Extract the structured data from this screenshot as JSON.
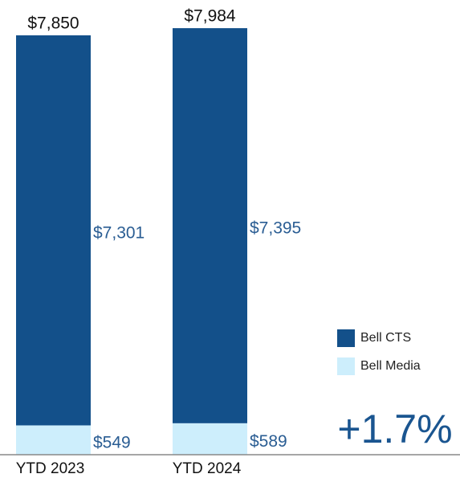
{
  "chart_data": {
    "type": "stacked_bar",
    "categories": [
      "YTD 2023",
      "YTD 2024"
    ],
    "series": [
      {
        "name": "Bell Media",
        "color": "#cdeefc",
        "values": [
          549,
          589
        ],
        "value_labels": [
          "$549",
          "$589"
        ]
      },
      {
        "name": "Bell CTS",
        "color": "#13508a",
        "values": [
          7301,
          7395
        ],
        "value_labels": [
          "$7,301",
          "$7,395"
        ]
      }
    ],
    "totals": [
      7850,
      7984
    ],
    "total_labels": [
      "$7,850",
      "$7,984"
    ],
    "ylim": [
      0,
      8000
    ],
    "annotation": "+1.7%",
    "legend": "bottom-right"
  }
}
